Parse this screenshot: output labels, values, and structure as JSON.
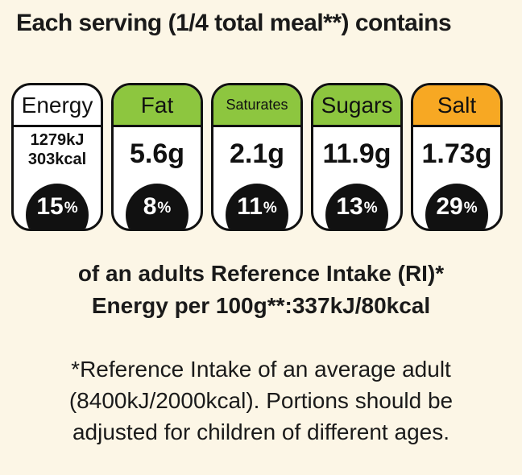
{
  "header": {
    "title": "Each serving (1/4 total meal**) contains"
  },
  "nutrients": [
    {
      "name": "Energy",
      "value_line1": "1279kJ",
      "value_line2": "303kcal",
      "percent": "15",
      "percent_sign": "%",
      "head_color": "#ffffff"
    },
    {
      "name": "Fat",
      "value": "5.6g",
      "percent": "8",
      "percent_sign": "%",
      "head_color": "#8dc63f"
    },
    {
      "name": "Saturates",
      "value": "2.1g",
      "percent": "11",
      "percent_sign": "%",
      "head_color": "#8dc63f"
    },
    {
      "name": "Sugars",
      "value": "11.9g",
      "percent": "13",
      "percent_sign": "%",
      "head_color": "#8dc63f"
    },
    {
      "name": "Salt",
      "value": "1.73g",
      "percent": "29",
      "percent_sign": "%",
      "head_color": "#f7a823"
    }
  ],
  "reference": {
    "line1": "of an adults Reference Intake (RI)*",
    "line2": "Energy per 100g**:337kJ/80kcal"
  },
  "footnote": {
    "line1": "*Reference Intake of an average adult",
    "line2": "(8400kJ/2000kcal). Portions should be",
    "line3": "adjusted for children of different ages."
  }
}
